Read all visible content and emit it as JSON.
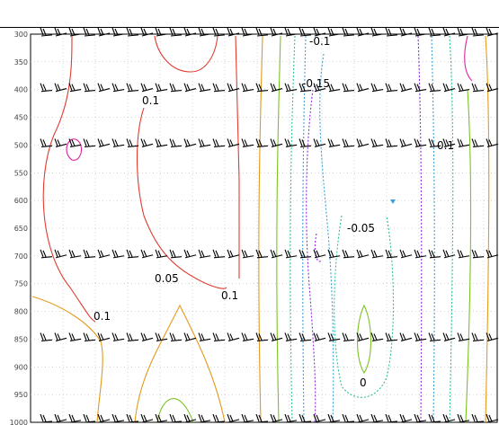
{
  "chart_data": {
    "type": "contour",
    "yaxis": {
      "ticks": [
        300,
        350,
        400,
        450,
        500,
        550,
        600,
        650,
        700,
        750,
        800,
        850,
        900,
        950,
        1000
      ],
      "range": [
        300,
        1000
      ],
      "inverted": true
    },
    "grid": true,
    "contour_labels": [
      "-0.1",
      "-0.15",
      "0.1",
      "0.1",
      "-0.05",
      "0.05",
      "0.1",
      "0.1",
      "0"
    ],
    "colors": {
      "positive": "#e03c31",
      "weak_positive": "#e39a1c",
      "zero": "#7cc225",
      "weak_negative": "#2bbf9c",
      "negative": "#3a9fd4",
      "strong_negative": "#8a2be2",
      "magenta": "#e020a0",
      "wind": "#000000"
    },
    "wind_barb_levels": [
      300,
      400,
      500,
      700,
      850,
      1000
    ]
  }
}
